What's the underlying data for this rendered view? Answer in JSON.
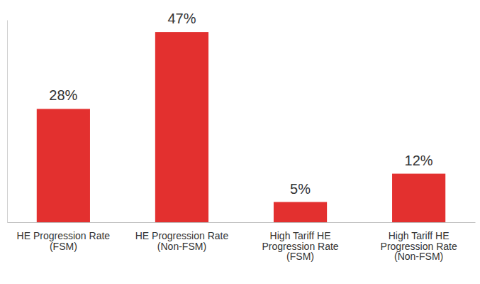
{
  "chart_data": {
    "type": "bar",
    "categories": [
      "HE Progression Rate (FSM)",
      "HE Progression Rate (Non-FSM)",
      "High Tariff HE Progression Rate (FSM)",
      "High Tariff HE Progression Rate (Non-FSM)"
    ],
    "values": [
      28,
      47,
      5,
      12
    ],
    "value_labels": [
      "28%",
      "47%",
      "5%",
      "12%"
    ],
    "color": "#e3302f",
    "ylim": [
      0,
      50
    ],
    "data_labels": true,
    "tick_labels": "x"
  }
}
